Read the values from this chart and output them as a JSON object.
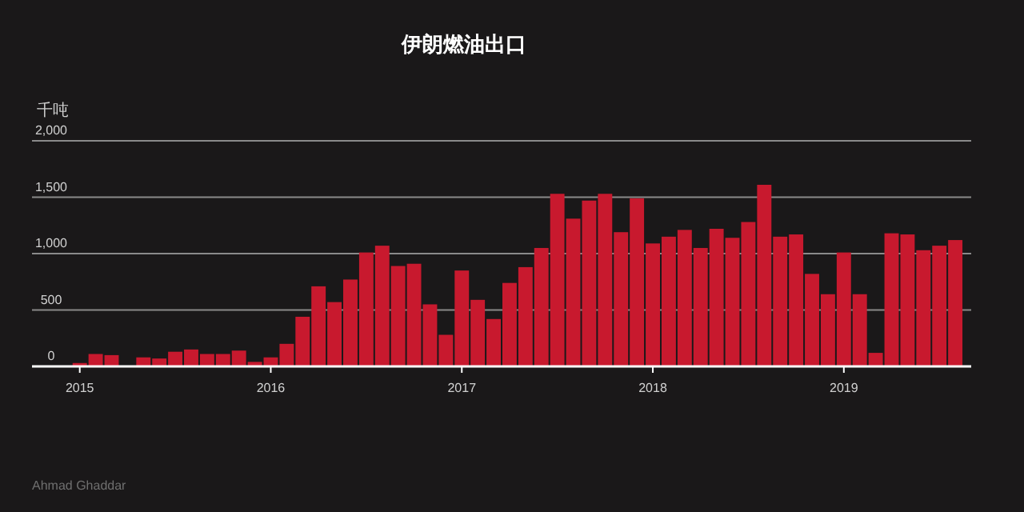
{
  "chart_data": {
    "type": "bar",
    "title": "伊朗燃油出口",
    "ylabel": "千吨",
    "x": [
      "2015-01",
      "2015-02",
      "2015-03",
      "2015-04",
      "2015-05",
      "2015-06",
      "2015-07",
      "2015-08",
      "2015-09",
      "2015-10",
      "2015-11",
      "2015-12",
      "2016-01",
      "2016-02",
      "2016-03",
      "2016-04",
      "2016-05",
      "2016-06",
      "2016-07",
      "2016-08",
      "2016-09",
      "2016-10",
      "2016-11",
      "2016-12",
      "2017-01",
      "2017-02",
      "2017-03",
      "2017-04",
      "2017-05",
      "2017-06",
      "2017-07",
      "2017-08",
      "2017-09",
      "2017-10",
      "2017-11",
      "2017-12",
      "2018-01",
      "2018-02",
      "2018-03",
      "2018-04",
      "2018-05",
      "2018-06",
      "2018-07",
      "2018-08",
      "2018-09",
      "2018-10",
      "2018-11",
      "2018-12",
      "2019-01",
      "2019-02",
      "2019-03",
      "2019-04",
      "2019-05",
      "2019-06",
      "2019-07",
      "2019-08"
    ],
    "values": [
      30,
      110,
      100,
      0,
      80,
      70,
      130,
      150,
      110,
      110,
      140,
      40,
      80,
      200,
      440,
      710,
      570,
      770,
      1010,
      1070,
      890,
      910,
      550,
      280,
      850,
      590,
      420,
      740,
      880,
      1050,
      1530,
      1310,
      1470,
      1530,
      1190,
      1490,
      1090,
      1150,
      1210,
      1050,
      1220,
      1140,
      1280,
      1610,
      1150,
      1170,
      820,
      640,
      1010,
      640,
      120,
      1180,
      1170,
      1030,
      1070,
      1120
    ],
    "color": "#c8192e",
    "xlim": [
      "2014-10",
      "2019-09"
    ],
    "xticks": [
      "2015",
      "2016",
      "2017",
      "2018",
      "2019"
    ],
    "ylim": [
      0,
      2000
    ],
    "yticks": [
      0,
      {
        "value": 500,
        "label": "500"
      },
      {
        "value": 1000,
        "label": "1,000"
      },
      {
        "value": 1500,
        "label": "1,500"
      },
      {
        "value": 2000,
        "label": "2,000"
      }
    ],
    "grid": "y",
    "annotations": [
      "Ahmad Ghaddar"
    ]
  }
}
